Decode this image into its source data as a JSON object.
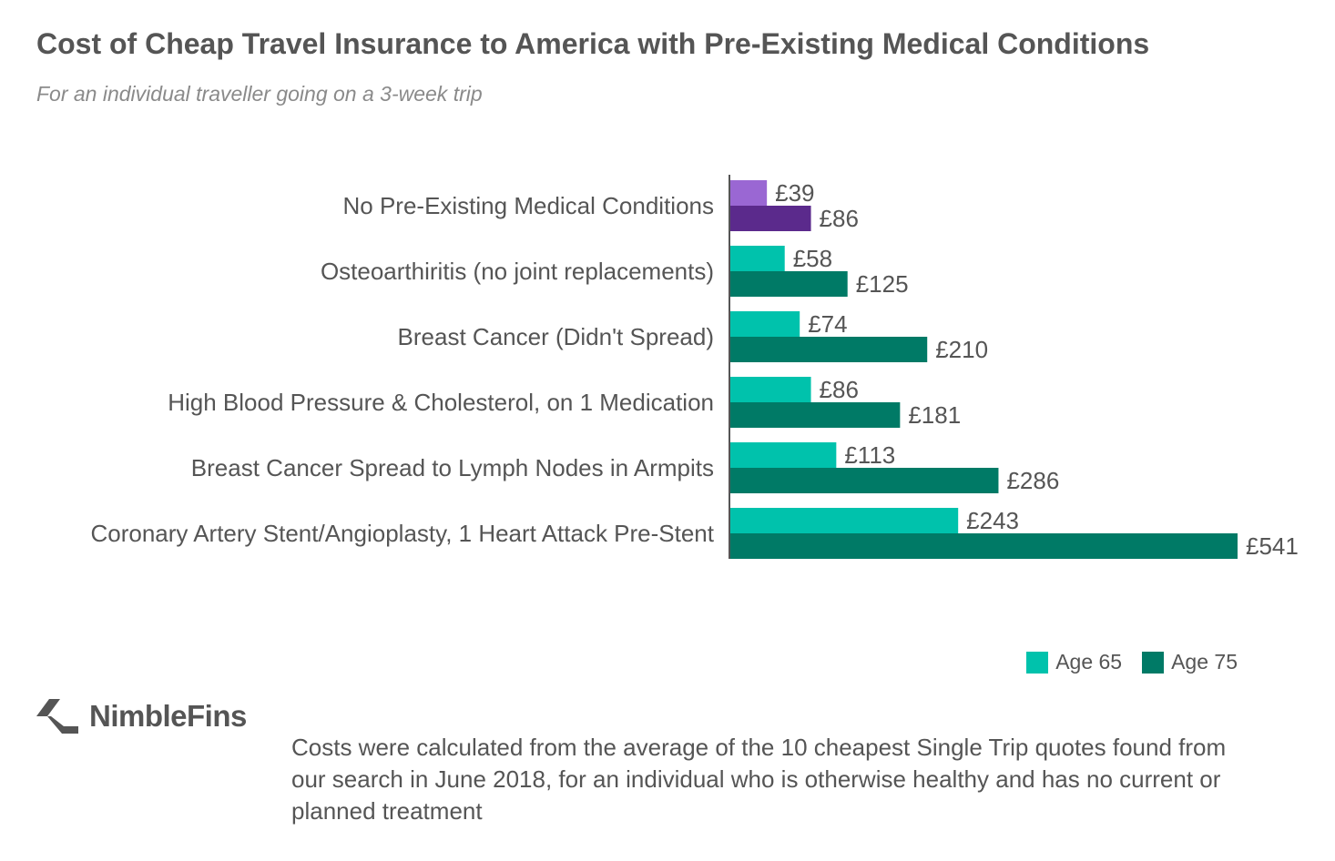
{
  "title": "Cost of Cheap Travel Insurance to America with Pre-Existing Medical Conditions",
  "subtitle": "For an individual traveller going on a 3-week trip",
  "chart_data": {
    "type": "bar",
    "orientation": "horizontal",
    "categories": [
      "No Pre-Existing Medical Conditions",
      "Osteoarthiritis (no joint replacements)",
      "Breast Cancer (Didn't Spread)",
      "High Blood Pressure & Cholesterol, on 1 Medication",
      "Breast Cancer Spread to Lymph Nodes in Armpits",
      "Coronary Artery Stent/Angioplasty, 1 Heart Attack Pre-Stent"
    ],
    "series": [
      {
        "name": "Age 65",
        "color": "#00c2ac",
        "highlight_color": "#9a67d3",
        "values": [
          39,
          58,
          74,
          86,
          113,
          243
        ],
        "labels": [
          "£39",
          "£58",
          "£74",
          "£86",
          "£113",
          "£243"
        ]
      },
      {
        "name": "Age 75",
        "color": "#007a66",
        "highlight_color": "#5b2a8c",
        "values": [
          86,
          125,
          210,
          181,
          286,
          541
        ],
        "labels": [
          "£86",
          "£125",
          "£210",
          "£181",
          "£286",
          "£541"
        ]
      }
    ],
    "highlight_category_index": 0,
    "xlim": [
      0,
      541
    ],
    "xlabel": "",
    "ylabel": "",
    "grid": false,
    "legend_position": "bottom-right"
  },
  "legend": {
    "age65": "Age 65",
    "age75": "Age 75",
    "age65_color": "#00c2ac",
    "age75_color": "#007a66"
  },
  "branding": {
    "logo_text": "NimbleFins",
    "logo_icon": "nimblefins-chevron-icon"
  },
  "footnote": "Costs were calculated from the average of the 10 cheapest Single Trip quotes found from our search in June 2018, for an individual who is otherwise healthy and has no current or planned treatment"
}
